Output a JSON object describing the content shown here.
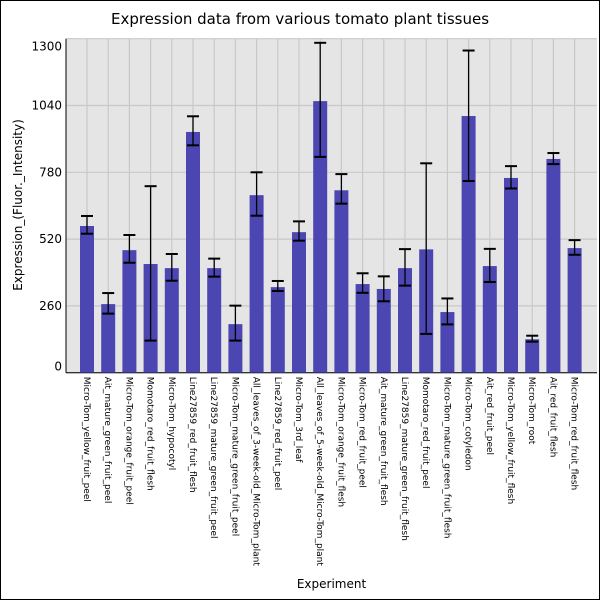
{
  "chart_data": {
    "type": "bar",
    "title": "Expression data from various tomato plant tissues",
    "xlabel": "Experiment",
    "ylabel": "Expression_(Fluor._Intensity)",
    "ylim": [
      0,
      1300
    ],
    "yticks": [
      0,
      260,
      520,
      780,
      1040,
      1300
    ],
    "grid": true,
    "bar_color": "#4b46b2",
    "background_color": "#e5e5e5",
    "categories": [
      "Micro-Tom_yellow_fruit_peel",
      "Ait_mature_green_fruit_peel",
      "Micro-Tom_orange_fruit_peel",
      "Momotaro_red_fruit_flesh",
      "Micro-Tom_hypocotyl",
      "Line27859_red_fruit_flesh",
      "Line27859_mature_green_fruit_peel",
      "Micro-Tom_mature_green_fruit_peel",
      "All_leaves_of_3-week-old_Micro-Tom_plant",
      "Line27859_red_fruit_peel",
      "Micro-Tom_3rd_leaf",
      "All_leaves_of_5-week-old_Micro-Tom_plant",
      "Micro-Tom_orange_fruit_flesh",
      "Micro-Tom_red_fruit_peel",
      "Ait_mature_green_fruit_flesh",
      "Line27859_mature_green_fruit_flesh",
      "Momotaro_red_fruit_peel",
      "Micro-Tom_mature_green_fruit_flesh",
      "Micro-Tom_cotyledon",
      "Ait_red_fruit_peel",
      "Micro-Tom_yellow_fruit_flesh",
      "Micro-Tom_root",
      "Ait_red_fruit_flesh",
      "Micro-Tom_red_fruit_flesh"
    ],
    "values": [
      571,
      267,
      477,
      423,
      407,
      937,
      407,
      189,
      691,
      333,
      547,
      1057,
      710,
      345,
      326,
      407,
      480,
      236,
      999,
      415,
      758,
      130,
      832,
      485
    ],
    "error_high": [
      610,
      310,
      536,
      726,
      462,
      998,
      444,
      261,
      780,
      357,
      589,
      1284,
      773,
      387,
      375,
      481,
      815,
      289,
      1254,
      482,
      804,
      144,
      855,
      516
    ],
    "error_low": [
      541,
      230,
      428,
      125,
      358,
      885,
      374,
      125,
      611,
      318,
      514,
      840,
      658,
      311,
      278,
      339,
      151,
      188,
      746,
      353,
      717,
      121,
      812,
      459
    ]
  }
}
